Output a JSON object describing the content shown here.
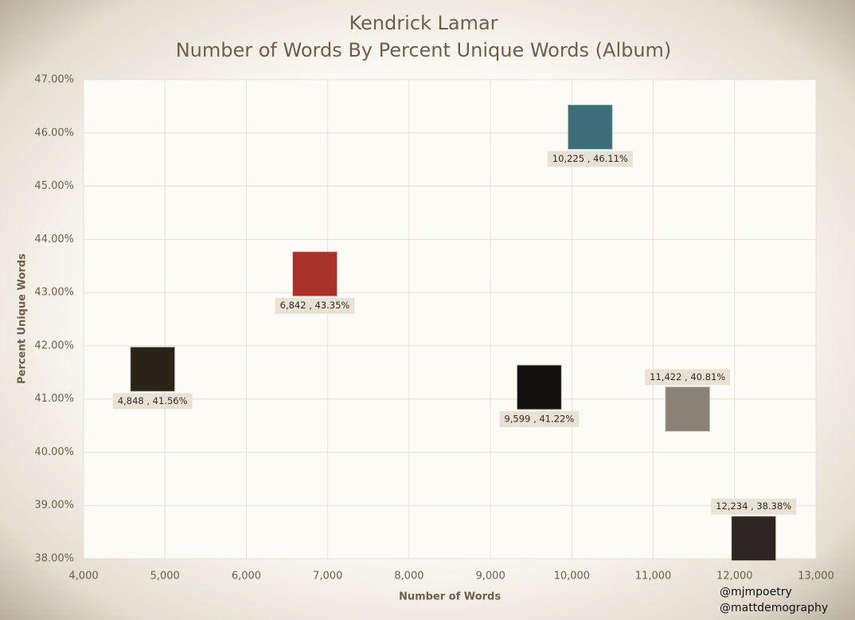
{
  "chart_data": {
    "type": "scatter",
    "title": "Kendrick Lamar",
    "subtitle": "Number of Words By Percent Unique Words (Album)",
    "x_label": "Number of Words",
    "y_label": "Percent Unique Words",
    "x": [
      4848,
      6842,
      9599,
      10225,
      11422,
      12234
    ],
    "values": [
      41.56,
      43.35,
      41.22,
      46.11,
      40.81,
      38.38
    ],
    "value_labels": [
      "4,848 , 41.56%",
      "6,842 , 43.35%",
      "9,599 , 41.22%",
      "10,225 , 46.11%",
      "11,422 , 40.81%",
      "12,234 , 38.38%"
    ],
    "colors": [
      "#2a2418",
      "#a8322a",
      "#141210",
      "#3d6e7a",
      "#8a8276",
      "#2b2620"
    ],
    "xlim": [
      4000,
      13000
    ],
    "ylim": [
      38,
      47
    ],
    "xticks": [
      {
        "value": 4000,
        "label": "4,000"
      },
      {
        "value": 5000,
        "label": "5,000"
      },
      {
        "value": 6000,
        "label": "6,000"
      },
      {
        "value": 7000,
        "label": "7,000"
      },
      {
        "value": 8000,
        "label": "8,000"
      },
      {
        "value": 9000,
        "label": "9,000"
      },
      {
        "value": 10000,
        "label": "10,000"
      },
      {
        "value": 11000,
        "label": "11,000"
      },
      {
        "value": 12000,
        "label": "12,000"
      },
      {
        "value": 13000,
        "label": "13,000"
      }
    ],
    "yticks": [
      {
        "value": 38,
        "label": "38.00%"
      },
      {
        "value": 39,
        "label": "39.00%"
      },
      {
        "value": 40,
        "label": "40.00%"
      },
      {
        "value": 41,
        "label": "41.00%"
      },
      {
        "value": 42,
        "label": "42.00%"
      },
      {
        "value": 43,
        "label": "43.00%"
      },
      {
        "value": 44,
        "label": "44.00%"
      },
      {
        "value": 45,
        "label": "45.00%"
      },
      {
        "value": 46,
        "label": "46.00%"
      },
      {
        "value": 47,
        "label": "47.00%"
      }
    ],
    "grid": true,
    "credits": [
      "@mjmpoetry",
      "@mattdemography"
    ]
  }
}
